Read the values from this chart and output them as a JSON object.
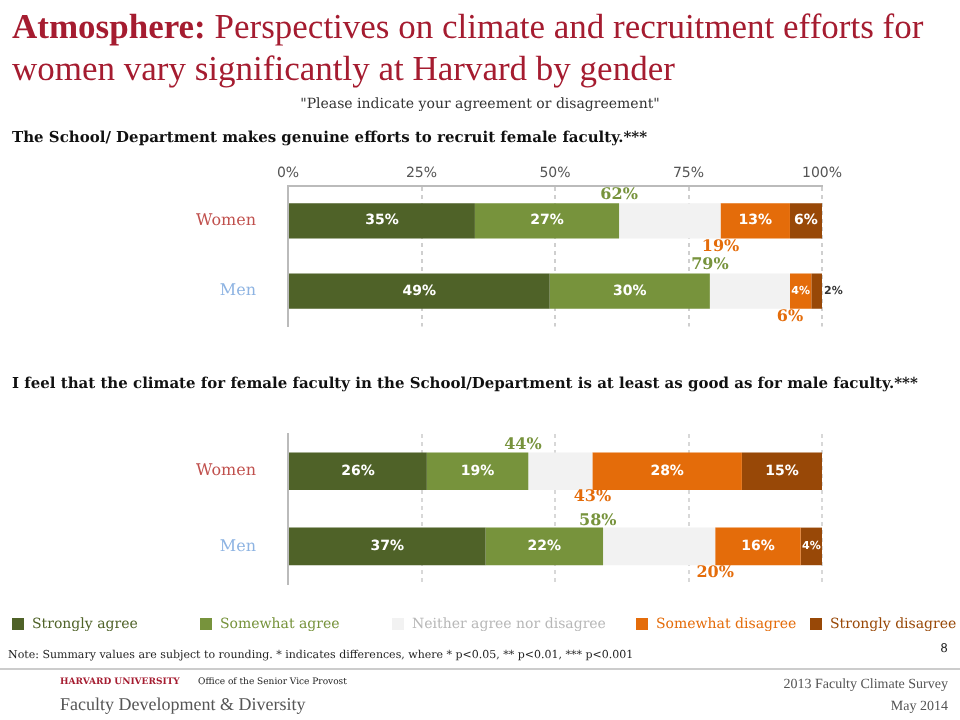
{
  "chart_data": [
    {
      "type": "other",
      "title": "Atmosphere: Perspectives on climate and recruitment efforts for women vary significantly at Harvard by gender",
      "subtitle": "\"Please indicate your agreement or disagreement\"",
      "annotations": [
        "Note: Summary values are subject to rounding.  * indicates differences, where * p<0.05, ** p<0.01, *** p<0.001",
        "8",
        "HARVARD UNIVERSITY",
        "Office of the Senior Vice Provost",
        "Faculty Development & Diversity",
        "2013 Faculty Climate Survey",
        "May 2014"
      ]
    },
    {
      "type": "bar",
      "orientation": "horizontal",
      "stacked": true,
      "title": "The School/ Department makes genuine efforts to recruit female faculty.***",
      "categories": [
        "Women",
        "Men"
      ],
      "series": [
        {
          "color": "#4f6228",
          "values": [
            35,
            49
          ],
          "value_labels": [
            "35%",
            "49%"
          ]
        },
        {
          "color": "#77933c",
          "values": [
            27,
            30
          ],
          "value_labels": [
            "27%",
            "30%"
          ]
        },
        {
          "color": "#f2f2f2",
          "values": [
            19,
            15
          ],
          "value_labels": [
            null,
            null
          ]
        },
        {
          "color": "#e46c0a",
          "values": [
            13,
            4
          ],
          "value_labels": [
            "13%",
            "4%"
          ]
        },
        {
          "color": "#984807",
          "values": [
            6,
            2
          ],
          "value_labels": [
            "6%",
            "2%"
          ]
        }
      ],
      "xlim": [
        0,
        100
      ],
      "xticks": [
        {
          "value": 0,
          "label": "0%"
        },
        {
          "value": 25,
          "label": "25%"
        },
        {
          "value": 50,
          "label": "50%"
        },
        {
          "value": 75,
          "label": "75%"
        },
        {
          "value": 100,
          "label": "100%"
        }
      ],
      "grid": "x",
      "legend": false,
      "annotations": [
        {
          "text": "62%",
          "x": 62,
          "y": "Women"
        },
        {
          "text": "19%",
          "x": 81,
          "y": "Women"
        },
        {
          "text": "79%",
          "x": 79,
          "y": "Men"
        },
        {
          "text": "6%",
          "x": 94,
          "y": "Men"
        }
      ]
    },
    {
      "type": "bar",
      "orientation": "horizontal",
      "stacked": true,
      "title": "I feel that the climate for female faculty in the School/Department is at least as good as for male faculty.***",
      "categories": [
        "Women",
        "Men"
      ],
      "series": [
        {
          "name": "Strongly agree",
          "color": "#4f6228",
          "values": [
            26,
            37
          ],
          "value_labels": [
            "26%",
            "37%"
          ]
        },
        {
          "name": "Somewhat agree",
          "color": "#77933c",
          "values": [
            19,
            22
          ],
          "value_labels": [
            "19%",
            "22%"
          ]
        },
        {
          "name": "Neither agree nor disagree",
          "color": "#f2f2f2",
          "values": [
            12,
            21
          ],
          "value_labels": [
            null,
            null
          ]
        },
        {
          "name": "Somewhat disagree",
          "color": "#e46c0a",
          "values": [
            28,
            16
          ],
          "value_labels": [
            "28%",
            "16%"
          ]
        },
        {
          "name": "Strongly disagree",
          "color": "#984807",
          "values": [
            15,
            4
          ],
          "value_labels": [
            "15%",
            "4%"
          ]
        }
      ],
      "xlim": [
        0,
        100
      ],
      "grid": "x",
      "tick_labels": "y",
      "legend": "bottom",
      "xticks": [
        {
          "value": 0,
          "label": null
        },
        {
          "value": 25,
          "label": null
        },
        {
          "value": 50,
          "label": null
        },
        {
          "value": 75,
          "label": null
        },
        {
          "value": 100,
          "label": null
        }
      ],
      "annotations": [
        {
          "text": "44%",
          "x": 44,
          "y": "Women"
        },
        {
          "text": "43%",
          "x": 57,
          "y": "Women"
        },
        {
          "text": "58%",
          "x": 58,
          "y": "Men"
        },
        {
          "text": "20%",
          "x": 80,
          "y": "Men"
        }
      ]
    }
  ]
}
